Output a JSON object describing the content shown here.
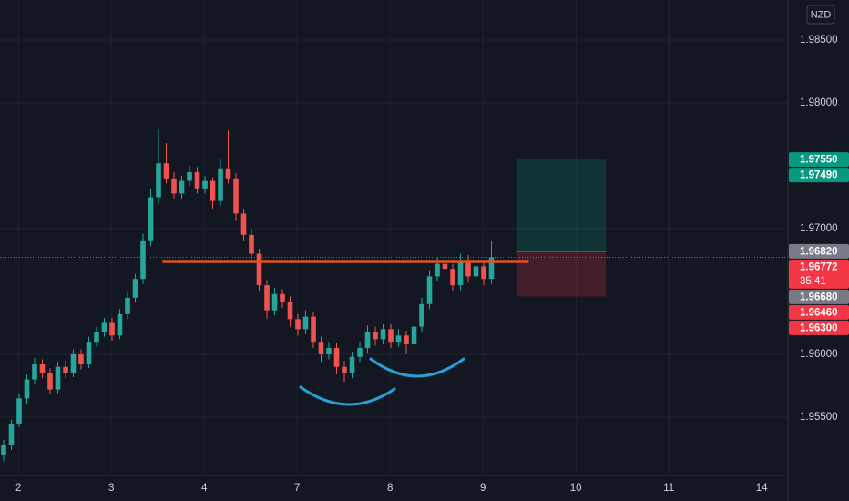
{
  "currency": "NZD",
  "chart_data": {
    "type": "candlestick",
    "up_color": "#26a69a",
    "down_color": "#ef5350",
    "candles": [
      [
        1.952,
        1.9532,
        1.9515,
        1.9528
      ],
      [
        1.9528,
        1.9548,
        1.9524,
        1.9545
      ],
      [
        1.9545,
        1.9569,
        1.9542,
        1.9565
      ],
      [
        1.9565,
        1.9584,
        1.956,
        1.958
      ],
      [
        1.958,
        1.9597,
        1.9576,
        1.9592
      ],
      [
        1.9592,
        1.9596,
        1.9581,
        1.9585
      ],
      [
        1.9585,
        1.9589,
        1.9568,
        1.9572
      ],
      [
        1.9572,
        1.9594,
        1.9569,
        1.959
      ],
      [
        1.959,
        1.9595,
        1.9581,
        1.9585
      ],
      [
        1.9585,
        1.9604,
        1.9582,
        1.96
      ],
      [
        1.96,
        1.9604,
        1.9588,
        1.9592
      ],
      [
        1.9592,
        1.9614,
        1.9589,
        1.961
      ],
      [
        1.961,
        1.9622,
        1.9606,
        1.9618
      ],
      [
        1.9618,
        1.9629,
        1.9614,
        1.9625
      ],
      [
        1.9625,
        1.9629,
        1.9611,
        1.9615
      ],
      [
        1.9615,
        1.9636,
        1.9612,
        1.9632
      ],
      [
        1.9632,
        1.9649,
        1.9628,
        1.9645
      ],
      [
        1.9645,
        1.9664,
        1.9641,
        1.966
      ],
      [
        1.966,
        1.9696,
        1.9656,
        1.969
      ],
      [
        1.969,
        1.9732,
        1.9686,
        1.9725
      ],
      [
        1.9725,
        1.9779,
        1.972,
        1.9752
      ],
      [
        1.9752,
        1.9768,
        1.9736,
        1.974
      ],
      [
        1.974,
        1.9745,
        1.9724,
        1.9728
      ],
      [
        1.9728,
        1.9742,
        1.9724,
        1.9738
      ],
      [
        1.9738,
        1.975,
        1.9734,
        1.9745
      ],
      [
        1.9745,
        1.9749,
        1.9728,
        1.9732
      ],
      [
        1.9732,
        1.9742,
        1.9728,
        1.9738
      ],
      [
        1.9738,
        1.9741,
        1.9716,
        1.9722
      ],
      [
        1.9722,
        1.9755,
        1.9718,
        1.9748
      ],
      [
        1.9748,
        1.9778,
        1.9736,
        1.974
      ],
      [
        1.974,
        1.9744,
        1.9706,
        1.9712
      ],
      [
        1.9712,
        1.9716,
        1.969,
        1.9695
      ],
      [
        1.9695,
        1.97,
        1.9676,
        1.968
      ],
      [
        1.968,
        1.9684,
        1.965,
        1.9655
      ],
      [
        1.9655,
        1.9659,
        1.9628,
        1.9635
      ],
      [
        1.9635,
        1.9653,
        1.9631,
        1.9648
      ],
      [
        1.9648,
        1.9652,
        1.9637,
        1.9642
      ],
      [
        1.9642,
        1.9646,
        1.9622,
        1.9628
      ],
      [
        1.9628,
        1.9632,
        1.9615,
        1.962
      ],
      [
        1.962,
        1.9635,
        1.9616,
        1.963
      ],
      [
        1.963,
        1.9634,
        1.9605,
        1.961
      ],
      [
        1.961,
        1.9614,
        1.9594,
        1.96
      ],
      [
        1.96,
        1.961,
        1.9596,
        1.9605
      ],
      [
        1.9605,
        1.9609,
        1.9584,
        1.959
      ],
      [
        1.959,
        1.9595,
        1.9578,
        1.9585
      ],
      [
        1.9585,
        1.9602,
        1.9581,
        1.9598
      ],
      [
        1.9598,
        1.961,
        1.9594,
        1.9605
      ],
      [
        1.9605,
        1.9623,
        1.9601,
        1.9618
      ],
      [
        1.9618,
        1.9622,
        1.9607,
        1.9612
      ],
      [
        1.9612,
        1.9624,
        1.9608,
        1.962
      ],
      [
        1.962,
        1.9624,
        1.9605,
        1.961
      ],
      [
        1.961,
        1.962,
        1.9606,
        1.9615
      ],
      [
        1.9615,
        1.9619,
        1.96,
        1.9608
      ],
      [
        1.9608,
        1.9627,
        1.9604,
        1.9622
      ],
      [
        1.9622,
        1.9645,
        1.9618,
        1.964
      ],
      [
        1.964,
        1.9667,
        1.9636,
        1.9662
      ],
      [
        1.9662,
        1.9677,
        1.9658,
        1.9672
      ],
      [
        1.9672,
        1.9676,
        1.9663,
        1.9668
      ],
      [
        1.9668,
        1.9672,
        1.965,
        1.9655
      ],
      [
        1.9655,
        1.968,
        1.9651,
        1.9675
      ],
      [
        1.9675,
        1.9679,
        1.9657,
        1.9662
      ],
      [
        1.9662,
        1.9675,
        1.9658,
        1.967
      ],
      [
        1.967,
        1.9674,
        1.9655,
        1.966
      ],
      [
        1.966,
        1.969,
        1.9656,
        1.96772
      ]
    ],
    "xlim": [
      -0.47,
      101.29
    ],
    "xticks": [
      {
        "value": 1.9,
        "label": "2"
      },
      {
        "value": 13.9,
        "label": "3"
      },
      {
        "value": 25.9,
        "label": "4"
      },
      {
        "value": 37.9,
        "label": "7"
      },
      {
        "value": 49.9,
        "label": "8"
      },
      {
        "value": 61.9,
        "label": "9"
      },
      {
        "value": 73.9,
        "label": "10"
      },
      {
        "value": 85.9,
        "label": "11"
      },
      {
        "value": 97.9,
        "label": "14"
      }
    ],
    "ylim": [
      1.95036,
      1.98819
    ],
    "yticks": [
      {
        "value": 1.955,
        "label": "1.95500"
      },
      {
        "value": 1.96,
        "label": "1.96000"
      },
      {
        "value": 1.97,
        "label": "1.97000"
      },
      {
        "value": 1.98,
        "label": "1.98000"
      },
      {
        "value": 1.985,
        "label": "1.98500"
      }
    ],
    "grid": true,
    "level": {
      "value": 1.96739,
      "from": 20.5,
      "to": 67.8,
      "color": "#e0531f"
    },
    "position": {
      "target": 1.9755,
      "entry": 1.9682,
      "stop": 1.9646,
      "from": 66.2,
      "to": 77.8
    },
    "price_labels": [
      {
        "value": 1.9755,
        "label": "1.97550",
        "color": "#089981"
      },
      {
        "value": 1.9749,
        "label": "1.97490",
        "color": "#089981"
      },
      {
        "value": 1.9682,
        "label": "1.96820",
        "color": "#787b86"
      },
      {
        "value": 1.96772,
        "label": "1.96772",
        "color": "#f23645",
        "countdown": "35:41"
      },
      {
        "value": 1.9668,
        "label": "1.96680",
        "color": "#787b86"
      },
      {
        "value": 1.9646,
        "label": "1.96460",
        "color": "#f23645"
      },
      {
        "value": 1.963,
        "label": "1.96300",
        "color": "#f23645"
      }
    ]
  }
}
